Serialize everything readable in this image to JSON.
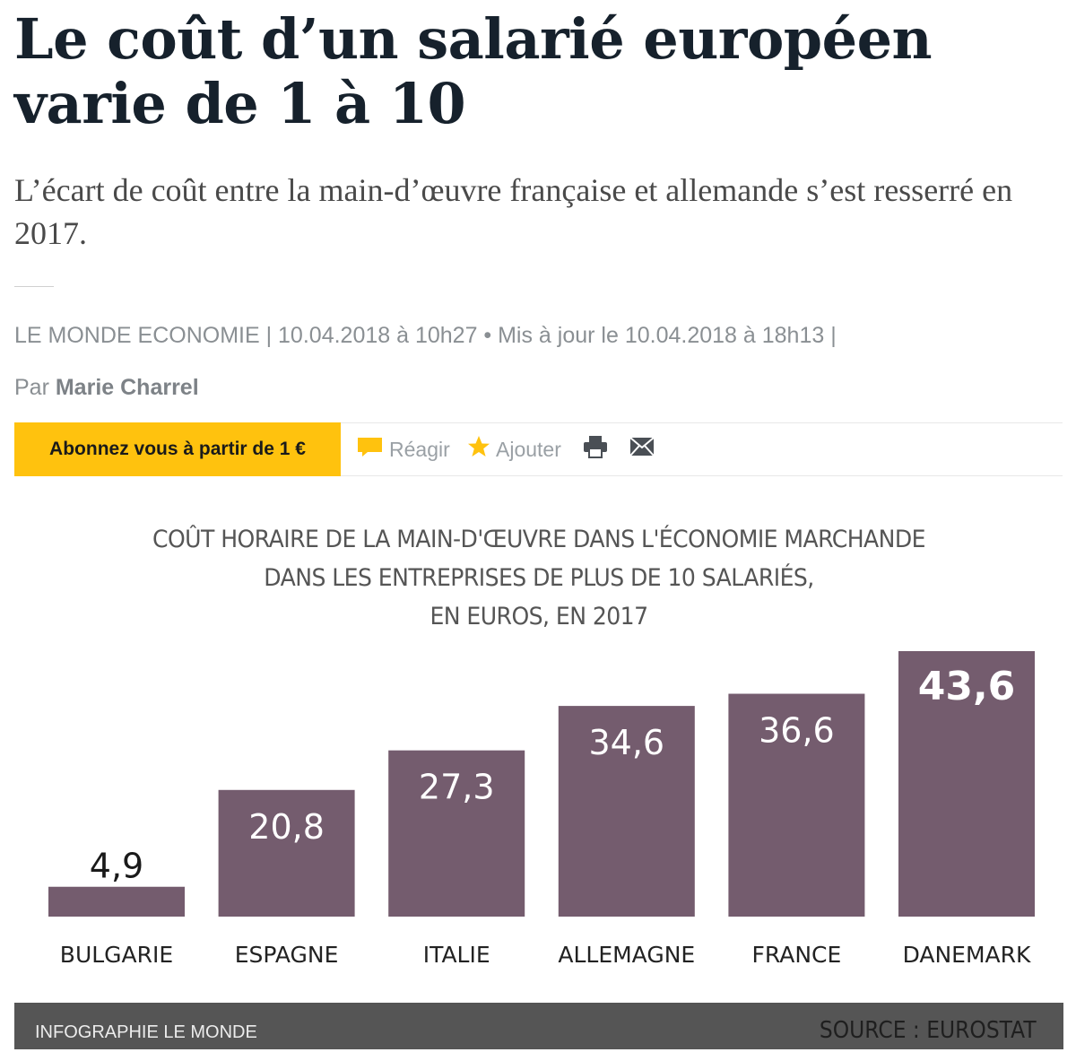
{
  "article": {
    "headline_line1": "Le coût d’un salarié européen",
    "headline_line2": "varie de 1 à 10",
    "subtitle": "L’écart de coût entre la main-d’œuvre française et allemande s’est resserré en 2017.",
    "meta": "LE MONDE ECONOMIE | 10.04.2018 à 10h27 • Mis à jour le 10.04.2018 à 18h13 |",
    "byline_prefix": "Par",
    "author": "Marie Charrel"
  },
  "toolbar": {
    "subscribe_label": "Abonnez vous à partir de 1 €",
    "react_label": "Réagir",
    "add_label": "Ajouter",
    "print_icon": "print-icon",
    "mail_icon": "mail-icon"
  },
  "colors": {
    "bar": "#745c6e",
    "subscribe": "#ffc20e",
    "footer": "#555555"
  },
  "chart_data": {
    "type": "bar",
    "title_lines": [
      "COÛT HORAIRE DE LA MAIN-D'ŒUVRE DANS L'ÉCONOMIE MARCHANDE",
      "DANS LES ENTREPRISES DE PLUS DE 10 SALARIÉS,",
      "EN EUROS, EN 2017"
    ],
    "categories": [
      "BULGARIE",
      "ESPAGNE",
      "ITALIE",
      "ALLEMAGNE",
      "FRANCE",
      "DANEMARK"
    ],
    "values": [
      4.9,
      20.8,
      27.3,
      34.6,
      36.6,
      43.6
    ],
    "labels": [
      "4,9",
      "20,8",
      "27,3",
      "34,6",
      "36,6",
      "43,6"
    ],
    "highlight_index": 5,
    "ylim": [
      0,
      43.6
    ],
    "xlabel": "",
    "ylabel": "",
    "footer_left": "INFOGRAPHIE LE MONDE",
    "footer_right": "SOURCE : EUROSTAT"
  }
}
